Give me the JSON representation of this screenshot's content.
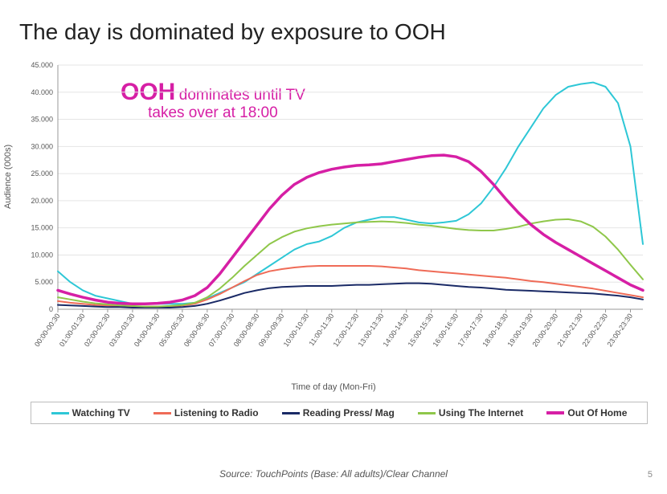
{
  "title": "The day is dominated by exposure to OOH",
  "annotation": {
    "big": "OOH",
    "rest_line1": "dominates until TV",
    "rest_line2": "takes over at 18:00"
  },
  "chart": {
    "type": "line",
    "ylabel": "Audience (000s)",
    "xlabel": "Time of day (Mon-Fri)",
    "ylim": [
      0,
      45
    ],
    "ytick_step": 5,
    "ytick_format": "0.000",
    "yticks": [
      "0",
      "5.000",
      "10.000",
      "15.000",
      "20.000",
      "25.000",
      "30.000",
      "35.000",
      "40.000",
      "45.000"
    ],
    "background_color": "#ffffff",
    "grid_color": "#e5e5e5",
    "axis_color": "#999999",
    "tick_font_size": 9,
    "label_font_size": 11,
    "line_width": 2,
    "line_width_bold": 3.5,
    "categories": [
      "00:00-00:30",
      "00:30-01:00",
      "01:00-01:30",
      "01:30-02:00",
      "02:00-02:30",
      "02:30-03:00",
      "03:00-03:30",
      "03:30-04:00",
      "04:00-04:30",
      "04:30-05:00",
      "05:00-05:30",
      "05:30-06:00",
      "06:00-06:30",
      "06:30-07:00",
      "07:00-07:30",
      "07:30-08:00",
      "08:00-08:30",
      "08:30-09:00",
      "09:00-09:30",
      "09:30-10:00",
      "10:00-10:30",
      "10:30-11:00",
      "11:00-11:30",
      "11:30-12:00",
      "12:00-12:30",
      "12:30-13:00",
      "13:00-13:30",
      "13:30-14:00",
      "14:00-14:30",
      "14:30-15:00",
      "15:00-15:30",
      "15:30-16:00",
      "16:00-16:30",
      "16:30-17:00",
      "17:00-17:30",
      "17:30-18:00",
      "18:00-18:30",
      "18:30-19:00",
      "19:00-19:30",
      "19:30-20:00",
      "20:00-20:30",
      "20:30-21:00",
      "21:00-21:30",
      "21:30-22:00",
      "22:00-22:30",
      "22:30-23:00",
      "23:00-23:30",
      "23:30-24:00"
    ],
    "categories_shown_step": 2,
    "series": [
      {
        "name": "Watching TV",
        "color": "#2ec7d6",
        "width": 2,
        "values": [
          7,
          5,
          3.5,
          2.5,
          2,
          1.5,
          1,
          1,
          1,
          1,
          1,
          1.2,
          2,
          3,
          4,
          5,
          6.5,
          8,
          9.5,
          11,
          12,
          12.5,
          13.5,
          15,
          16,
          16.5,
          17,
          17,
          16.5,
          16,
          15.8,
          16,
          16.3,
          17.5,
          19.5,
          22.5,
          26,
          30,
          33.5,
          37,
          39.5,
          41,
          41.5,
          41.8,
          41,
          38,
          30,
          12
        ]
      },
      {
        "name": "Listening to Radio",
        "color": "#ef6b57",
        "width": 2,
        "values": [
          1.5,
          1.2,
          1,
          0.8,
          0.7,
          0.6,
          0.5,
          0.5,
          0.5,
          0.5,
          0.7,
          1,
          1.8,
          2.8,
          4,
          5.2,
          6.3,
          7,
          7.4,
          7.7,
          7.9,
          8,
          8,
          8,
          8,
          8,
          7.9,
          7.7,
          7.5,
          7.2,
          7,
          6.8,
          6.6,
          6.4,
          6.2,
          6,
          5.8,
          5.5,
          5.2,
          5,
          4.7,
          4.4,
          4.1,
          3.8,
          3.4,
          3,
          2.6,
          2.2
        ]
      },
      {
        "name": "Reading  Press/ Mag",
        "color": "#1a2a66",
        "width": 2,
        "values": [
          0.8,
          0.7,
          0.6,
          0.5,
          0.4,
          0.4,
          0.3,
          0.3,
          0.3,
          0.3,
          0.4,
          0.6,
          1,
          1.6,
          2.3,
          3,
          3.5,
          3.9,
          4.1,
          4.2,
          4.3,
          4.3,
          4.3,
          4.4,
          4.5,
          4.5,
          4.6,
          4.7,
          4.8,
          4.8,
          4.7,
          4.5,
          4.3,
          4.1,
          4,
          3.8,
          3.6,
          3.5,
          3.4,
          3.3,
          3.2,
          3.1,
          3,
          2.9,
          2.7,
          2.5,
          2.2,
          1.8
        ]
      },
      {
        "name": "Using The Internet",
        "color": "#8fc74a",
        "width": 2,
        "values": [
          2.2,
          1.8,
          1.4,
          1.1,
          0.9,
          0.7,
          0.6,
          0.5,
          0.5,
          0.6,
          0.8,
          1.2,
          2.2,
          3.8,
          5.8,
          8,
          10,
          12,
          13.3,
          14.3,
          14.9,
          15.3,
          15.6,
          15.8,
          16,
          16.1,
          16.2,
          16.1,
          15.9,
          15.6,
          15.4,
          15.1,
          14.8,
          14.6,
          14.5,
          14.5,
          14.8,
          15.2,
          15.8,
          16.2,
          16.5,
          16.6,
          16.2,
          15.2,
          13.4,
          11,
          8.2,
          5.5
        ]
      },
      {
        "name": "Out Of Home",
        "color": "#d61fa5",
        "width": 3.5,
        "values": [
          3.5,
          2.8,
          2.2,
          1.7,
          1.3,
          1.1,
          1,
          1,
          1.1,
          1.3,
          1.7,
          2.5,
          4,
          6.5,
          9.5,
          12.5,
          15.5,
          18.5,
          21,
          23,
          24.3,
          25.2,
          25.8,
          26.2,
          26.5,
          26.6,
          26.8,
          27.2,
          27.6,
          28,
          28.3,
          28.4,
          28.1,
          27.2,
          25.4,
          23,
          20.3,
          17.8,
          15.6,
          13.8,
          12.3,
          11,
          9.7,
          8.4,
          7.1,
          5.8,
          4.5,
          3.5
        ]
      }
    ]
  },
  "legend": {
    "items": [
      {
        "label": "Watching TV",
        "color": "#2ec7d6",
        "thick": false
      },
      {
        "label": "Listening to Radio",
        "color": "#ef6b57",
        "thick": false
      },
      {
        "label": "Reading  Press/ Mag",
        "color": "#1a2a66",
        "thick": false
      },
      {
        "label": "Using The Internet",
        "color": "#8fc74a",
        "thick": false
      },
      {
        "label": "Out Of Home",
        "color": "#d61fa5",
        "thick": true
      }
    ]
  },
  "source": "Source: TouchPoints (Base: All adults)/Clear Channel",
  "page_number": "5"
}
